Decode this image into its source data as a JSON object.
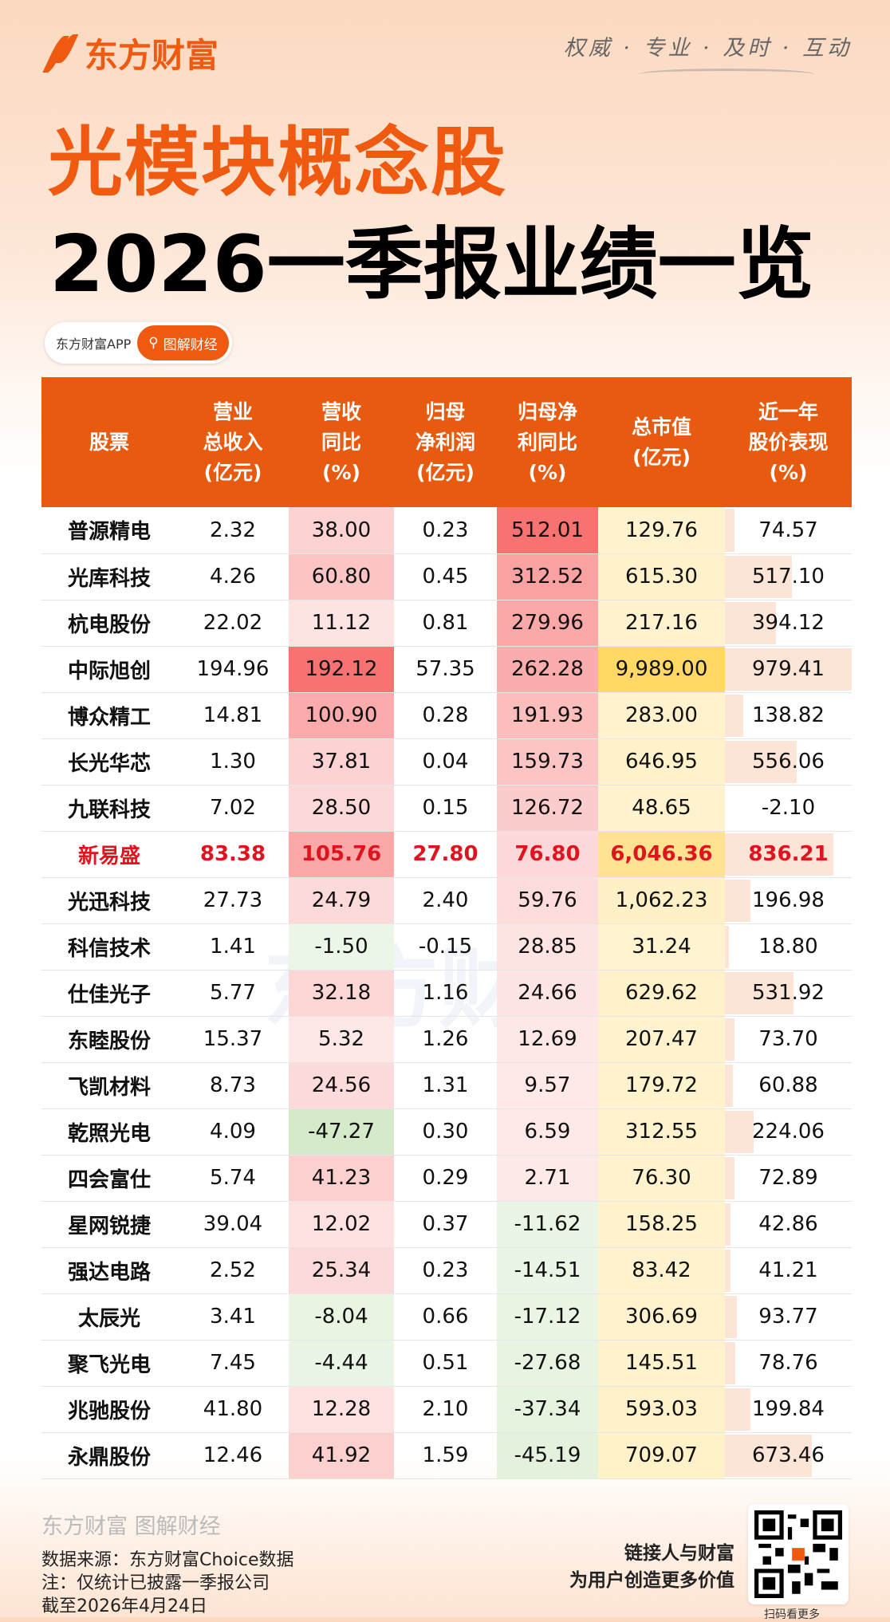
{
  "brand": {
    "name": "东方财富",
    "slogan": "权威 · 专业 · 及时 · 互动",
    "accent": "#f05a10"
  },
  "title": {
    "line1": "光模块概念股",
    "line2": "2026一季报业绩一览"
  },
  "pill": {
    "app": "东方财富APP",
    "button": "图解财经"
  },
  "table": {
    "headers": [
      "股票",
      "营业\n总收入\n(亿元)",
      "营收\n同比\n(%)",
      "归母\n净利润\n(亿元)",
      "归母净\n利同比\n(%)",
      "总市值\n(亿元)",
      "近一年\n股价表现\n(%)"
    ],
    "highlight_row": "新易盛",
    "rows": [
      [
        "普源精电",
        "2.32",
        "38.00",
        "0.23",
        "512.01",
        "129.76",
        "74.57"
      ],
      [
        "光库科技",
        "4.26",
        "60.80",
        "0.45",
        "312.52",
        "615.30",
        "517.10"
      ],
      [
        "杭电股份",
        "22.02",
        "11.12",
        "0.81",
        "279.96",
        "217.16",
        "394.12"
      ],
      [
        "中际旭创",
        "194.96",
        "192.12",
        "57.35",
        "262.28",
        "9,989.00",
        "979.41"
      ],
      [
        "博众精工",
        "14.81",
        "100.90",
        "0.28",
        "191.93",
        "283.00",
        "138.82"
      ],
      [
        "长光华芯",
        "1.30",
        "37.81",
        "0.04",
        "159.73",
        "646.95",
        "556.06"
      ],
      [
        "九联科技",
        "7.02",
        "28.50",
        "0.15",
        "126.72",
        "48.65",
        "-2.10"
      ],
      [
        "新易盛",
        "83.38",
        "105.76",
        "27.80",
        "76.80",
        "6,046.36",
        "836.21"
      ],
      [
        "光迅科技",
        "27.73",
        "24.79",
        "2.40",
        "59.76",
        "1,062.23",
        "196.98"
      ],
      [
        "科信技术",
        "1.41",
        "-1.50",
        "-0.15",
        "28.85",
        "31.24",
        "18.80"
      ],
      [
        "仕佳光子",
        "5.77",
        "32.18",
        "1.16",
        "24.66",
        "629.62",
        "531.92"
      ],
      [
        "东睦股份",
        "15.37",
        "5.32",
        "1.26",
        "12.69",
        "207.47",
        "73.70"
      ],
      [
        "飞凯材料",
        "8.73",
        "24.56",
        "1.31",
        "9.57",
        "179.72",
        "60.88"
      ],
      [
        "乾照光电",
        "4.09",
        "-47.27",
        "0.30",
        "6.59",
        "312.55",
        "224.06"
      ],
      [
        "四会富仕",
        "5.74",
        "41.23",
        "0.29",
        "2.71",
        "76.30",
        "72.89"
      ],
      [
        "星网锐捷",
        "39.04",
        "12.02",
        "0.37",
        "-11.62",
        "158.25",
        "42.86"
      ],
      [
        "强达电路",
        "2.52",
        "25.34",
        "0.23",
        "-14.51",
        "83.42",
        "41.21"
      ],
      [
        "太辰光",
        "3.41",
        "-8.04",
        "0.66",
        "-17.12",
        "306.69",
        "93.77"
      ],
      [
        "聚飞光电",
        "7.45",
        "-4.44",
        "0.51",
        "-27.68",
        "145.51",
        "78.76"
      ],
      [
        "兆驰股份",
        "41.80",
        "12.28",
        "2.10",
        "-37.34",
        "593.03",
        "199.84"
      ],
      [
        "永鼎股份",
        "12.46",
        "41.92",
        "1.59",
        "-45.19",
        "709.07",
        "673.46"
      ]
    ]
  },
  "colors": {
    "up": "#f87272",
    "down": "#b5dba0",
    "cap": "#ffd866",
    "cap_light": "#fff3d0",
    "bar": "#fce4d6",
    "highlight_text": "#e0141e",
    "header_bg": "#e85a0f"
  },
  "watermark": "东方财富",
  "footer": {
    "logo": "东方财富 图解财经",
    "source": "数据来源：东方财富Choice数据",
    "note": "注：仅统计已披露一季报公司",
    "date": "截至2026年4月24日",
    "slogan1": "链接人与财富",
    "slogan2": "为用户创造更多价值",
    "qr_caption": "扫码看更多"
  }
}
